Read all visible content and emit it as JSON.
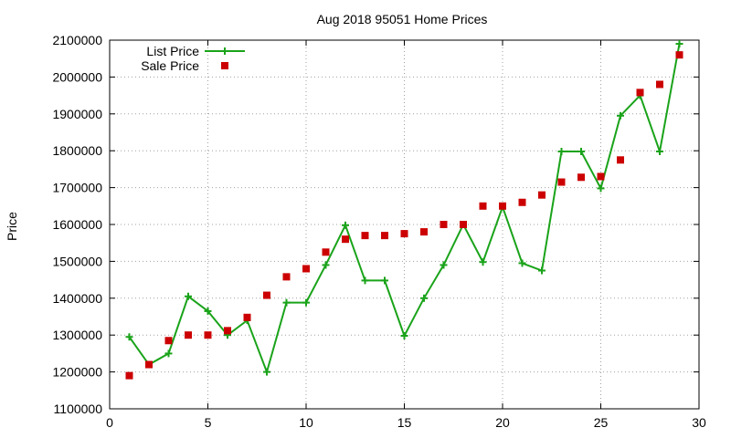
{
  "chart_data": {
    "type": "line",
    "title": "Aug 2018 95051 Home Prices",
    "xlabel": "",
    "ylabel": "Price",
    "xlim": [
      0,
      30
    ],
    "ylim": [
      1100000,
      2100000
    ],
    "x_ticks": [
      0,
      5,
      10,
      15,
      20,
      25,
      30
    ],
    "y_ticks": [
      1100000,
      1200000,
      1300000,
      1400000,
      1500000,
      1600000,
      1700000,
      1800000,
      1900000,
      2000000,
      2100000
    ],
    "grid": true,
    "grid_style": "dotted",
    "legend_position": "top-left",
    "series": [
      {
        "name": "List Price",
        "style": "line-with-plus-markers",
        "color": "#1aa31a",
        "x": [
          1,
          2,
          3,
          4,
          5,
          6,
          7,
          8,
          9,
          10,
          11,
          12,
          13,
          14,
          15,
          16,
          17,
          18,
          19,
          20,
          21,
          22,
          23,
          24,
          25,
          26,
          27,
          28,
          29
        ],
        "y": [
          1295000,
          1220000,
          1250000,
          1405000,
          1365000,
          1300000,
          1340000,
          1200000,
          1388000,
          1388000,
          1490000,
          1598000,
          1448000,
          1448000,
          1298000,
          1400000,
          1490000,
          1600000,
          1498000,
          1648000,
          1495000,
          1475000,
          1798000,
          1798000,
          1698000,
          1895000,
          1950000,
          1798000,
          2090000
        ]
      },
      {
        "name": "Sale Price",
        "style": "square-markers",
        "color": "#cc0000",
        "x": [
          1,
          2,
          3,
          4,
          5,
          6,
          7,
          8,
          9,
          10,
          11,
          12,
          13,
          14,
          15,
          16,
          17,
          18,
          19,
          20,
          21,
          22,
          23,
          24,
          25,
          26,
          27,
          28,
          29
        ],
        "y": [
          1190000,
          1220000,
          1285000,
          1300000,
          1300000,
          1312000,
          1348000,
          1408000,
          1458000,
          1480000,
          1525000,
          1560000,
          1570000,
          1570000,
          1575000,
          1580000,
          1600000,
          1600000,
          1650000,
          1650000,
          1660000,
          1680000,
          1715000,
          1728000,
          1730000,
          1775000,
          1958000,
          1980000,
          2060000
        ]
      }
    ]
  }
}
